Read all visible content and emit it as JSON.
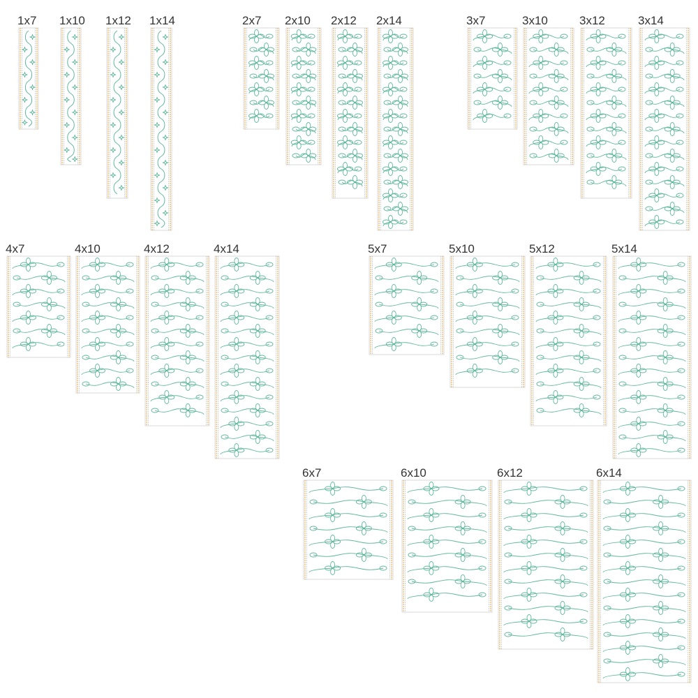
{
  "panels": [
    {
      "label": "1x7"
    },
    {
      "label": "1x10"
    },
    {
      "label": "1x12"
    },
    {
      "label": "1x14"
    },
    {
      "label": "2x7"
    },
    {
      "label": "2x10"
    },
    {
      "label": "2x12"
    },
    {
      "label": "2x14"
    },
    {
      "label": "3x7"
    },
    {
      "label": "3x10"
    },
    {
      "label": "3x12"
    },
    {
      "label": "3x14"
    },
    {
      "label": "4x7"
    },
    {
      "label": "4x10"
    },
    {
      "label": "4x12"
    },
    {
      "label": "4x14"
    },
    {
      "label": "5x7"
    },
    {
      "label": "5x10"
    },
    {
      "label": "5x12"
    },
    {
      "label": "5x14"
    },
    {
      "label": "6x7"
    },
    {
      "label": "6x10"
    },
    {
      "label": "6x12"
    },
    {
      "label": "6x14"
    }
  ]
}
